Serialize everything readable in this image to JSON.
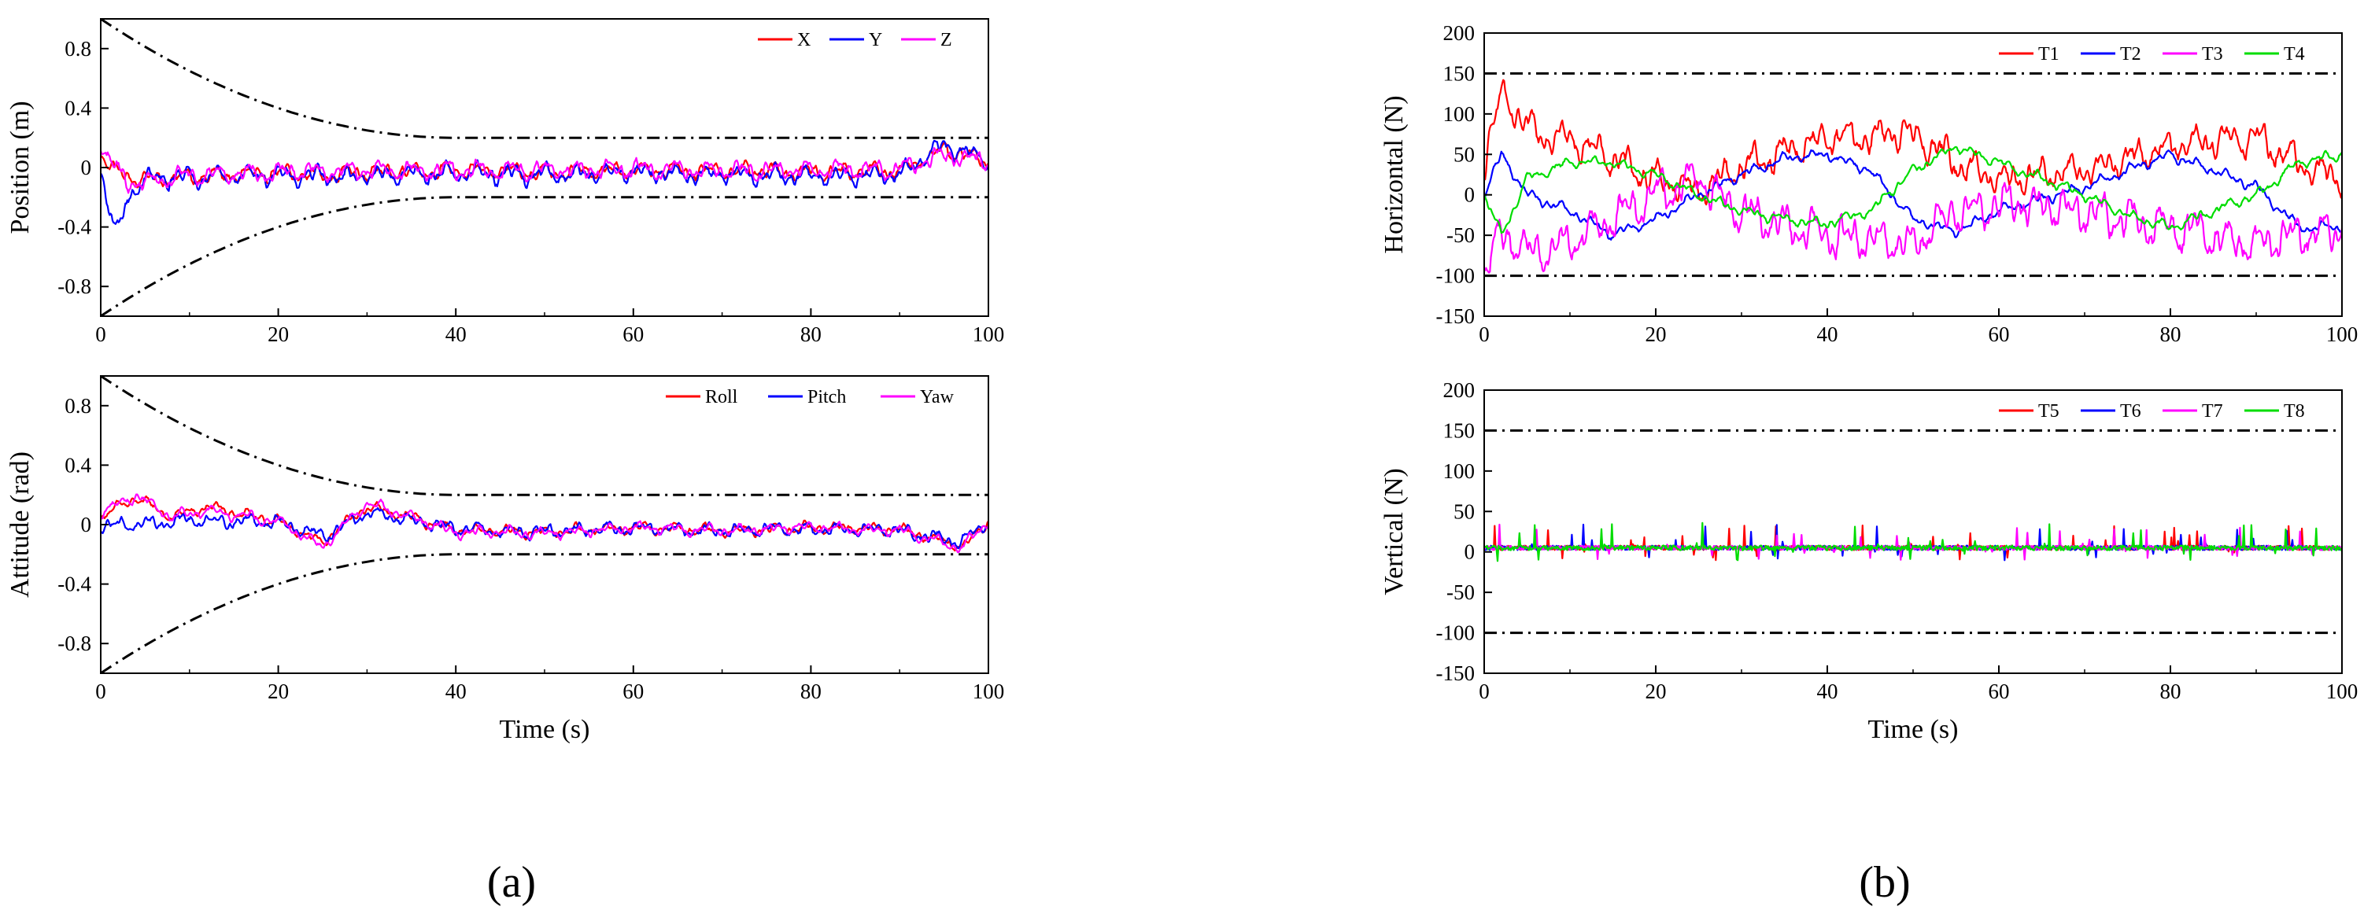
{
  "figure": {
    "sub_a": "(a)",
    "sub_b": "(b)"
  },
  "colors": {
    "red": "#ff0000",
    "blue": "#0000ff",
    "magenta": "#ff00ff",
    "green": "#00dd00",
    "bound": "#000000"
  },
  "chart_data": [
    {
      "id": "position",
      "type": "line",
      "ylabel": "Position (m)",
      "xlabel": "",
      "xlim": [
        0,
        100
      ],
      "ylim": [
        -1.0,
        1.0
      ],
      "xticks": [
        0,
        20,
        40,
        60,
        80,
        100
      ],
      "yticks": [
        -0.8,
        -0.4,
        0,
        0.4,
        0.8
      ],
      "ytick_labels": [
        "-0.8",
        "-0.4",
        "0",
        "0.4",
        "0.8"
      ],
      "legend_position": "top-right",
      "bounds": {
        "style": "dash-dot",
        "upper_start": 1.0,
        "lower_start": -1.0,
        "steady": 0.2,
        "settle_time": 40
      },
      "series": [
        {
          "name": "X",
          "color": "#ff0000",
          "amp": 0.06,
          "bias": -0.04,
          "transient": [
            0,
            0
          ],
          "x": [
            0,
            2,
            5,
            10,
            20,
            25,
            30,
            40,
            50,
            60,
            70,
            80,
            90,
            95,
            100
          ],
          "y": [
            0.1,
            -0.05,
            -0.08,
            -0.06,
            -0.04,
            -0.05,
            -0.03,
            -0.02,
            -0.03,
            -0.02,
            -0.02,
            -0.03,
            -0.02,
            0.12,
            0.05
          ]
        },
        {
          "name": "Y",
          "color": "#0000ff",
          "amp": 0.07,
          "bias": -0.05,
          "transient": [
            0,
            0
          ],
          "x": [
            0,
            1,
            2,
            3,
            5,
            10,
            20,
            30,
            40,
            50,
            60,
            70,
            80,
            90,
            95,
            100
          ],
          "y": [
            0,
            -0.3,
            -0.45,
            -0.2,
            -0.08,
            -0.06,
            -0.05,
            -0.06,
            -0.04,
            -0.05,
            -0.03,
            -0.05,
            -0.06,
            -0.04,
            0.15,
            0.05
          ]
        },
        {
          "name": "Z",
          "color": "#ff00ff",
          "amp": 0.07,
          "bias": -0.02,
          "transient": [
            0,
            0
          ],
          "x": [
            0,
            1,
            3,
            5,
            10,
            20,
            30,
            40,
            50,
            60,
            70,
            80,
            90,
            95,
            100
          ],
          "y": [
            0.15,
            0.05,
            -0.1,
            -0.1,
            -0.05,
            -0.03,
            -0.02,
            -0.02,
            -0.02,
            -0.01,
            -0.02,
            -0.02,
            -0.01,
            0.08,
            0.05
          ]
        }
      ]
    },
    {
      "id": "attitude",
      "type": "line",
      "ylabel": "Attitude (rad)",
      "xlabel": "Time (s)",
      "xlim": [
        0,
        100
      ],
      "ylim": [
        -1.0,
        1.0
      ],
      "xticks": [
        0,
        20,
        40,
        60,
        80,
        100
      ],
      "yticks": [
        -0.8,
        -0.4,
        0,
        0.4,
        0.8
      ],
      "ytick_labels": [
        "-0.8",
        "-0.4",
        "0",
        "0.4",
        "0.8"
      ],
      "legend_position": "top-right",
      "bounds": {
        "style": "dash-dot",
        "upper_start": 1.0,
        "lower_start": -1.0,
        "steady": 0.2,
        "settle_time": 40
      },
      "series": [
        {
          "name": "Roll",
          "color": "#ff0000",
          "amp": 0.04,
          "bias": -0.02,
          "transient": [
            0,
            0
          ],
          "x": [
            0,
            4,
            8,
            12,
            20,
            25,
            30,
            35,
            40,
            50,
            60,
            70,
            80,
            90,
            97,
            100
          ],
          "y": [
            0.05,
            0.18,
            0.05,
            0.12,
            0.02,
            -0.12,
            0.12,
            0.05,
            -0.04,
            -0.05,
            -0.02,
            -0.04,
            -0.02,
            -0.03,
            -0.15,
            0.02
          ]
        },
        {
          "name": "Pitch",
          "color": "#0000ff",
          "amp": 0.05,
          "bias": -0.02,
          "transient": [
            0,
            0
          ],
          "x": [
            0,
            5,
            10,
            20,
            25,
            30,
            35,
            40,
            50,
            60,
            70,
            80,
            90,
            97,
            100
          ],
          "y": [
            0.0,
            0.0,
            0.03,
            0.02,
            -0.08,
            0.08,
            0.03,
            -0.03,
            -0.05,
            -0.02,
            -0.04,
            -0.03,
            -0.04,
            -0.12,
            0.02
          ]
        },
        {
          "name": "Yaw",
          "color": "#ff00ff",
          "amp": 0.04,
          "bias": -0.02,
          "transient": [
            0,
            0
          ],
          "x": [
            0,
            4,
            8,
            12,
            20,
            25,
            30,
            35,
            40,
            50,
            60,
            70,
            80,
            90,
            97,
            100
          ],
          "y": [
            0.08,
            0.2,
            0.05,
            0.1,
            0.02,
            -0.15,
            0.15,
            0.05,
            -0.05,
            -0.06,
            -0.02,
            -0.04,
            -0.02,
            -0.04,
            -0.16,
            0.02
          ]
        }
      ]
    },
    {
      "id": "horizontal",
      "type": "line",
      "ylabel": "Horizontal (N)",
      "xlabel": "",
      "xlim": [
        0,
        100
      ],
      "ylim": [
        -150,
        200
      ],
      "xticks": [
        0,
        20,
        40,
        60,
        80,
        100
      ],
      "yticks": [
        -150,
        -100,
        -50,
        0,
        50,
        100,
        150,
        200
      ],
      "ytick_labels": [
        "-150",
        "-100",
        "-50",
        "0",
        "50",
        "100",
        "150",
        "200"
      ],
      "legend_position": "top-right",
      "bounds": {
        "style": "dash-dot",
        "upper": 150,
        "lower": -100
      },
      "series": [
        {
          "name": "T1",
          "color": "#ff0000",
          "amp": 22,
          "x": [
            0,
            2,
            5,
            10,
            15,
            20,
            25,
            30,
            40,
            50,
            55,
            60,
            70,
            80,
            90,
            95,
            100
          ],
          "y": [
            40,
            125,
            80,
            70,
            45,
            20,
            5,
            35,
            70,
            75,
            40,
            20,
            30,
            60,
            70,
            40,
            20
          ]
        },
        {
          "name": "T2",
          "color": "#0000ff",
          "amp": 7,
          "x": [
            0,
            2,
            5,
            10,
            15,
            20,
            25,
            30,
            35,
            40,
            45,
            50,
            55,
            60,
            70,
            80,
            90,
            95,
            100
          ],
          "y": [
            0,
            50,
            0,
            -20,
            -50,
            -30,
            0,
            25,
            45,
            50,
            30,
            -30,
            -45,
            -20,
            10,
            50,
            10,
            -40,
            -40
          ]
        },
        {
          "name": "T3",
          "color": "#ff00ff",
          "amp": 28,
          "x": [
            0,
            2,
            5,
            10,
            15,
            20,
            25,
            30,
            40,
            50,
            55,
            60,
            70,
            80,
            90,
            95,
            100
          ],
          "y": [
            -90,
            -50,
            -70,
            -60,
            -30,
            0,
            20,
            -20,
            -50,
            -60,
            -20,
            -10,
            -20,
            -40,
            -60,
            -50,
            -40
          ]
        },
        {
          "name": "T4",
          "color": "#00dd00",
          "amp": 7,
          "x": [
            0,
            2,
            5,
            10,
            15,
            20,
            25,
            30,
            35,
            40,
            45,
            50,
            55,
            60,
            70,
            75,
            80,
            90,
            95,
            100
          ],
          "y": [
            0,
            -50,
            20,
            40,
            40,
            25,
            0,
            -20,
            -30,
            -35,
            -20,
            30,
            60,
            40,
            0,
            -25,
            -40,
            0,
            40,
            50
          ]
        }
      ]
    },
    {
      "id": "vertical",
      "type": "line",
      "ylabel": "Vertical (N)",
      "xlabel": "Time (s)",
      "xlim": [
        0,
        100
      ],
      "ylim": [
        -150,
        200
      ],
      "xticks": [
        0,
        20,
        40,
        60,
        80,
        100
      ],
      "yticks": [
        -150,
        -100,
        -50,
        0,
        50,
        100,
        150,
        200
      ],
      "ytick_labels": [
        "-150",
        "-100",
        "-50",
        "0",
        "50",
        "100",
        "150",
        "200"
      ],
      "legend_position": "top-right",
      "bounds": {
        "style": "dash-dot",
        "upper": 150,
        "lower": -100
      },
      "series": [
        {
          "name": "T5",
          "color": "#ff0000",
          "amp": 14,
          "x": [
            0,
            100
          ],
          "y": [
            5,
            5
          ]
        },
        {
          "name": "T6",
          "color": "#0000ff",
          "amp": 14,
          "x": [
            0,
            100
          ],
          "y": [
            5,
            5
          ]
        },
        {
          "name": "T7",
          "color": "#ff00ff",
          "amp": 14,
          "x": [
            0,
            100
          ],
          "y": [
            5,
            5
          ]
        },
        {
          "name": "T8",
          "color": "#00dd00",
          "amp": 15,
          "x": [
            0,
            100
          ],
          "y": [
            5,
            5
          ]
        }
      ]
    }
  ]
}
